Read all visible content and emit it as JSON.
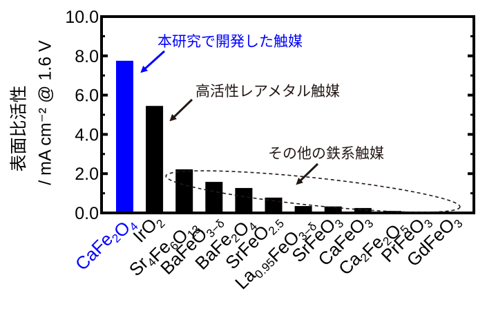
{
  "chart_data": {
    "type": "bar",
    "title": "",
    "ylabel_line1": "表面比活性",
    "ylabel_line2": "/ mA cm⁻² @ 1.6 V",
    "ylabel": "表面比活性 / mA cm⁻² @ 1.6 V",
    "xlabel": "",
    "ylim": [
      0,
      10
    ],
    "yticks": [
      "0.0",
      "2.0",
      "4.0",
      "6.0",
      "8.0",
      "10.0"
    ],
    "grid": false,
    "legend": null,
    "categories": [
      "CaFe2O4",
      "IrO2",
      "Sr4Fe6O13",
      "BaFeO3−δ",
      "BaFe2O4",
      "SrFeO2.5",
      "La0.95FeO3−δ",
      "SrFeO3",
      "CaFeO3",
      "Ca2Fe2O5",
      "PrFeO3",
      "GdFeO3"
    ],
    "category_parts": [
      [
        [
          "CaFe",
          ""
        ],
        [
          "2",
          "sub"
        ],
        [
          "O",
          ""
        ],
        [
          "4",
          "sub"
        ]
      ],
      [
        [
          "IrO",
          ""
        ],
        [
          "2",
          "sub"
        ]
      ],
      [
        [
          "Sr",
          ""
        ],
        [
          "4",
          "sub"
        ],
        [
          "Fe",
          ""
        ],
        [
          "6",
          "sub"
        ],
        [
          "O",
          ""
        ],
        [
          "13",
          "sub"
        ]
      ],
      [
        [
          "BaFeO",
          ""
        ],
        [
          "3−δ",
          "sub"
        ]
      ],
      [
        [
          "BaFe",
          ""
        ],
        [
          "2",
          "sub"
        ],
        [
          "O",
          ""
        ],
        [
          "4",
          "sub"
        ]
      ],
      [
        [
          "SrFeO",
          ""
        ],
        [
          "2.5",
          "sub"
        ]
      ],
      [
        [
          "La",
          ""
        ],
        [
          "0.95",
          "sub"
        ],
        [
          "FeO",
          ""
        ],
        [
          "3−δ",
          "sub"
        ]
      ],
      [
        [
          "SrFeO",
          ""
        ],
        [
          "3",
          "sub"
        ]
      ],
      [
        [
          "CaFeO",
          ""
        ],
        [
          "3",
          "sub"
        ]
      ],
      [
        [
          "Ca",
          ""
        ],
        [
          "2",
          "sub"
        ],
        [
          "Fe",
          ""
        ],
        [
          "2",
          "sub"
        ],
        [
          "O",
          ""
        ],
        [
          "5",
          "sub"
        ]
      ],
      [
        [
          "PrFeO",
          ""
        ],
        [
          "3",
          "sub"
        ]
      ],
      [
        [
          "GdFeO",
          ""
        ],
        [
          "3",
          "sub"
        ]
      ]
    ],
    "values": [
      7.75,
      5.45,
      2.22,
      1.58,
      1.27,
      0.78,
      0.35,
      0.33,
      0.25,
      0.1,
      0.02,
      0.02
    ],
    "bar_colors": [
      "#0000ff",
      "#000000",
      "#000000",
      "#000000",
      "#000000",
      "#000000",
      "#000000",
      "#000000",
      "#000000",
      "#000000",
      "#000000",
      "#000000"
    ],
    "label_colors": [
      "#0000ff",
      "#000000",
      "#000000",
      "#000000",
      "#000000",
      "#000000",
      "#000000",
      "#000000",
      "#000000",
      "#000000",
      "#000000",
      "#000000"
    ],
    "annotations": [
      {
        "text": "本研究で開発した触媒",
        "color": "#0000ff",
        "target": "CaFe2O4"
      },
      {
        "text": "高活性レアメタル触媒",
        "color": "#000000",
        "target": "IrO2"
      },
      {
        "text": "その他の鉄系触媒",
        "color": "#000000",
        "target": "Sr4Fe6O13 … GdFeO3 (dashed ellipse)"
      }
    ]
  },
  "annotations": {
    "developed": "本研究で開発した触媒",
    "rare_metal": "高活性レアメタル触媒",
    "other_iron": "その他の鉄系触媒"
  },
  "axis": {
    "ylabel_line1": "表面比活性",
    "ylabel_line2": "/ mA cm⁻² @ 1.6 V"
  },
  "colors": {
    "accent": "#0000ff",
    "bar": "#000000",
    "frame": "#000000"
  }
}
